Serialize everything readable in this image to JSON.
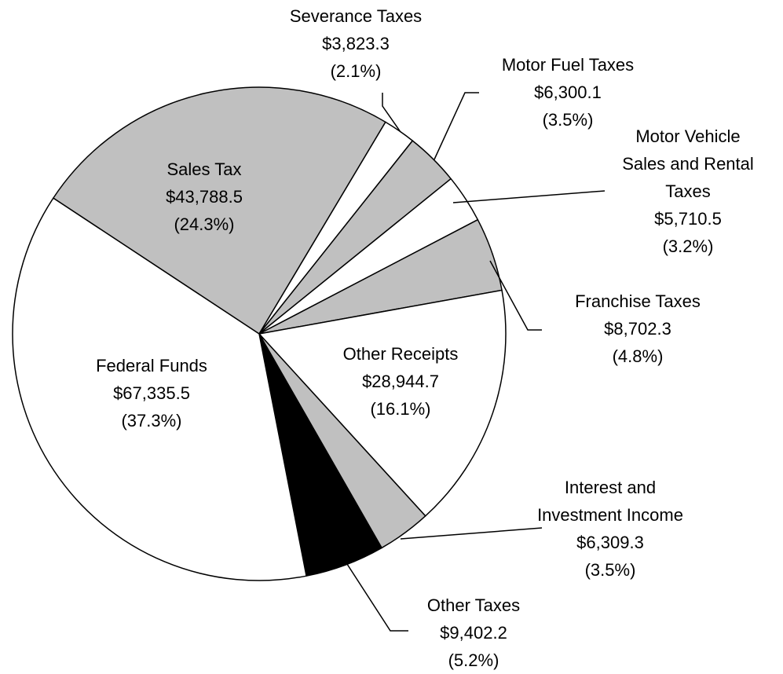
{
  "chart_data": {
    "type": "pie",
    "categories": [
      "Sales Tax",
      "Severance Taxes",
      "Motor Fuel Taxes",
      "Motor Vehicle\nSales and Rental\nTaxes",
      "Franchise Taxes",
      "Other Receipts",
      "Interest and\nInvestment Income",
      "Other Taxes",
      "Federal Funds"
    ],
    "values": [
      43788.5,
      3823.3,
      6300.1,
      5710.5,
      8702.3,
      28944.7,
      6309.3,
      9402.2,
      67335.5
    ],
    "value_labels": [
      "$43,788.5",
      "$3,823.3",
      "$6,300.1",
      "$5,710.5",
      "$8,702.3",
      "$28,944.7",
      "$6,309.3",
      "$9,402.2",
      "$67,335.5"
    ],
    "percents": [
      24.3,
      2.1,
      3.5,
      3.2,
      4.8,
      16.1,
      3.5,
      5.2,
      37.3
    ],
    "percent_labels": [
      "(24.3%)",
      "(2.1%)",
      "(3.5%)",
      "(3.2%)",
      "(4.8%)",
      "(16.1%)",
      "(3.5%)",
      "(5.2%)",
      "(37.3%)"
    ],
    "colors": [
      "#c0c0c0",
      "#ffffff",
      "#c0c0c0",
      "#ffffff",
      "#c0c0c0",
      "#ffffff",
      "#c0c0c0",
      "#000000",
      "#ffffff"
    ]
  }
}
